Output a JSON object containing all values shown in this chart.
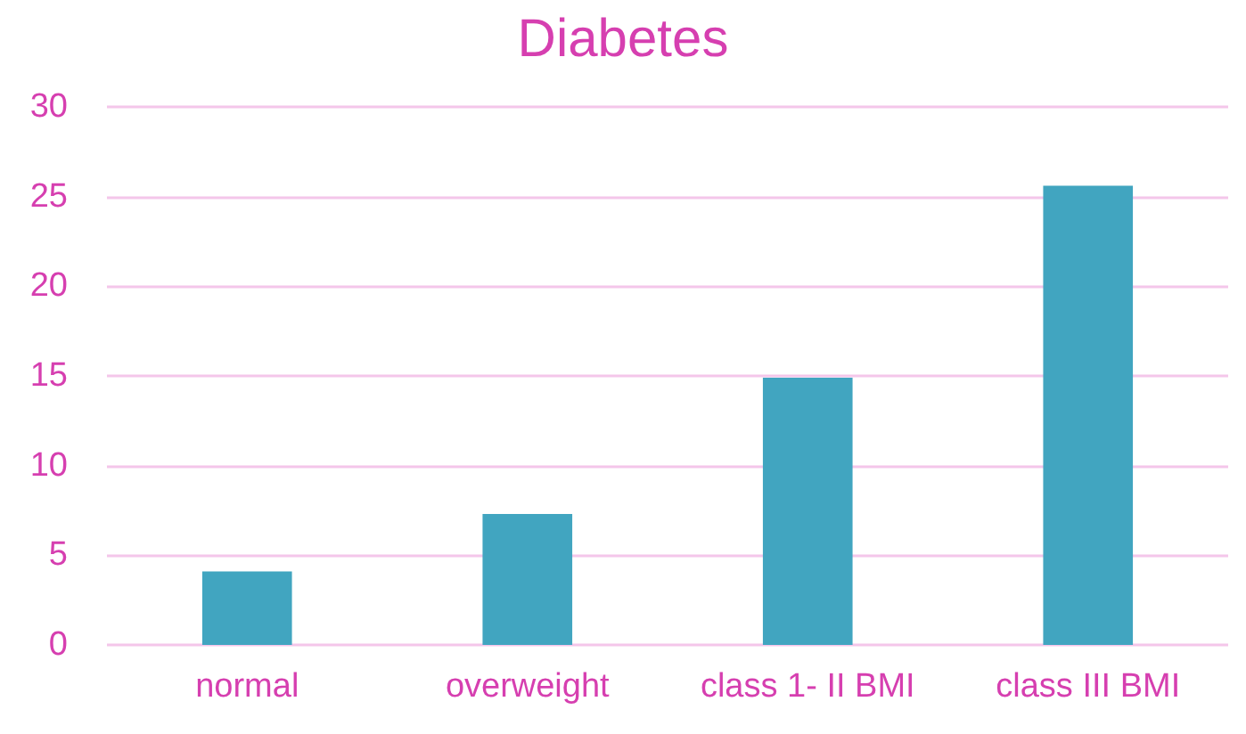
{
  "chart_data": {
    "type": "bar",
    "title": "Diabetes",
    "categories": [
      "normal",
      "overweight",
      "class 1- II BMI",
      "class III BMI"
    ],
    "values": [
      4.1,
      7.3,
      14.9,
      25.6
    ],
    "color": "#41a5c0",
    "ylim": [
      0,
      30
    ],
    "yticks": [
      0,
      5,
      10,
      15,
      20,
      25,
      30
    ],
    "grid": "y"
  }
}
